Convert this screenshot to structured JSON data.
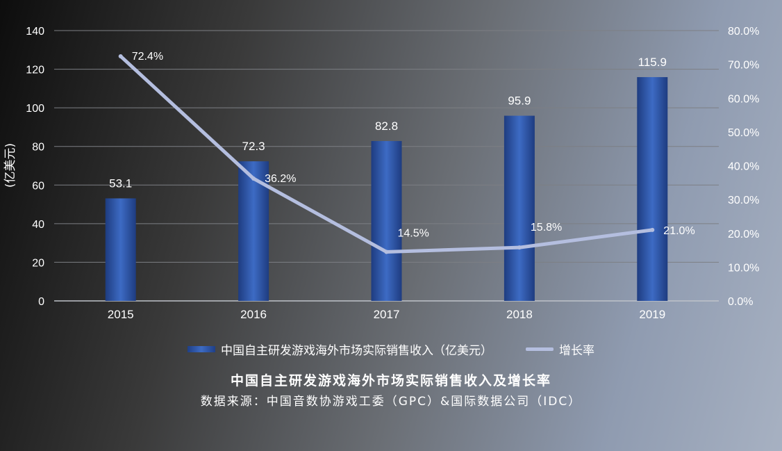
{
  "chart_data": {
    "type": "bar",
    "categories": [
      "2015",
      "2016",
      "2017",
      "2018",
      "2019"
    ],
    "series": [
      {
        "name": "中国自主研发游戏海外市场实际销售收入（亿美元）",
        "type": "bar",
        "axis": "left",
        "values": [
          53.1,
          72.3,
          82.8,
          95.9,
          115.9
        ],
        "labels": [
          "53.1",
          "72.3",
          "82.8",
          "95.9",
          "115.9"
        ]
      },
      {
        "name": "增长率",
        "type": "line",
        "axis": "right",
        "values": [
          72.4,
          36.2,
          14.5,
          15.8,
          21.0
        ],
        "labels": [
          "72.4%",
          "36.2%",
          "14.5%",
          "15.8%",
          "21.0%"
        ]
      }
    ],
    "ylabel": "(亿美元)",
    "ylim": [
      0,
      140
    ],
    "yticks": [
      "0",
      "20",
      "40",
      "60",
      "80",
      "100",
      "120",
      "140"
    ],
    "y2lim": [
      0,
      80
    ],
    "y2ticks": [
      "0.0%",
      "10.0%",
      "20.0%",
      "30.0%",
      "40.0%",
      "50.0%",
      "60.0%",
      "70.0%",
      "80.0%"
    ],
    "grid": true,
    "legend_position": "bottom",
    "title": "中国自主研发游戏海外市场实际销售收入及增长率",
    "source": "数据来源：中国音数协游戏工委（GPC）&国际数据公司（IDC）",
    "colors": {
      "bar": "#2f5bb0",
      "line": "#b4bedf",
      "grid": "#7d7f84"
    }
  }
}
